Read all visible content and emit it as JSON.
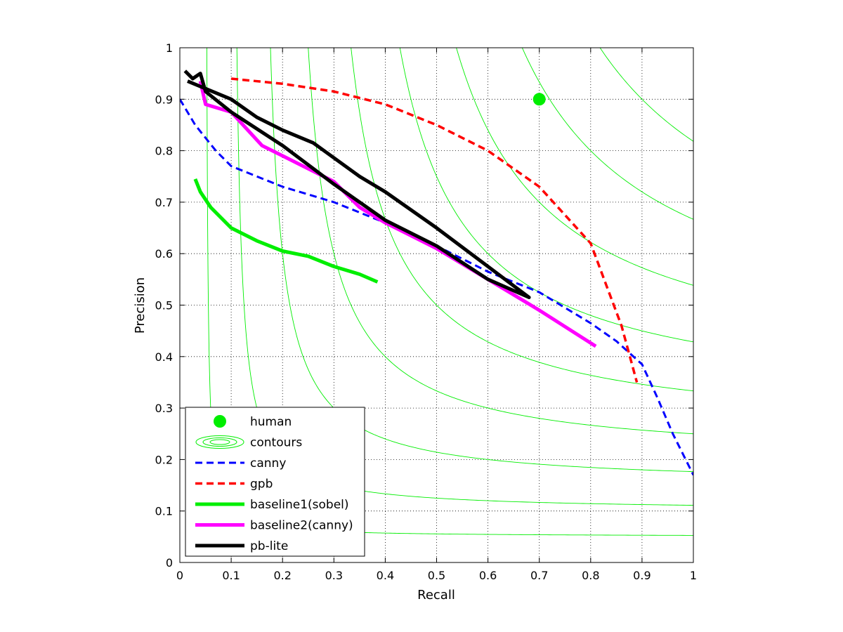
{
  "chart_data": {
    "type": "line",
    "title": "",
    "xlabel": "Recall",
    "ylabel": "Precision",
    "xlim": [
      0,
      1
    ],
    "ylim": [
      0,
      1
    ],
    "xticks": [
      0,
      0.1,
      0.2,
      0.3,
      0.4,
      0.5,
      0.6,
      0.7,
      0.8,
      0.9,
      1
    ],
    "yticks": [
      0,
      0.1,
      0.2,
      0.3,
      0.4,
      0.5,
      0.6,
      0.7,
      0.8,
      0.9,
      1
    ],
    "xtick_labels": [
      "0",
      "0.1",
      "0.2",
      "0.3",
      "0.4",
      "0.5",
      "0.6",
      "0.7",
      "0.8",
      "0.9",
      "1"
    ],
    "ytick_labels": [
      "0",
      "0.1",
      "0.2",
      "0.3",
      "0.4",
      "0.5",
      "0.6",
      "0.7",
      "0.8",
      "0.9",
      "1"
    ],
    "grid": true,
    "legend_position": "bottom-left",
    "contour_f_values": [
      0.1,
      0.2,
      0.3,
      0.4,
      0.5,
      0.6,
      0.7,
      0.8,
      0.9
    ],
    "series": [
      {
        "name": "human",
        "kind": "point",
        "color": "#00ee00",
        "points": [
          [
            0.7,
            0.9
          ]
        ]
      },
      {
        "name": "contours",
        "kind": "contours",
        "color": "#00ee00"
      },
      {
        "name": "canny",
        "kind": "line",
        "color": "#0000ff",
        "dash": "dashed",
        "points": [
          [
            0.0,
            0.9
          ],
          [
            0.03,
            0.85
          ],
          [
            0.07,
            0.8
          ],
          [
            0.1,
            0.77
          ],
          [
            0.2,
            0.73
          ],
          [
            0.3,
            0.7
          ],
          [
            0.4,
            0.66
          ],
          [
            0.5,
            0.615
          ],
          [
            0.6,
            0.565
          ],
          [
            0.7,
            0.525
          ],
          [
            0.8,
            0.465
          ],
          [
            0.85,
            0.43
          ],
          [
            0.9,
            0.385
          ],
          [
            0.93,
            0.32
          ],
          [
            0.96,
            0.25
          ],
          [
            1.0,
            0.17
          ]
        ]
      },
      {
        "name": "gpb",
        "kind": "line",
        "color": "#ff0000",
        "dash": "dashed",
        "points": [
          [
            0.1,
            0.94
          ],
          [
            0.2,
            0.93
          ],
          [
            0.3,
            0.915
          ],
          [
            0.4,
            0.89
          ],
          [
            0.5,
            0.85
          ],
          [
            0.6,
            0.8
          ],
          [
            0.7,
            0.73
          ],
          [
            0.8,
            0.62
          ],
          [
            0.83,
            0.54
          ],
          [
            0.86,
            0.46
          ],
          [
            0.89,
            0.35
          ]
        ]
      },
      {
        "name": "baseline1(sobel)",
        "kind": "line",
        "color": "#00ee00",
        "dash": "solid",
        "points": [
          [
            0.03,
            0.745
          ],
          [
            0.04,
            0.72
          ],
          [
            0.06,
            0.69
          ],
          [
            0.1,
            0.65
          ],
          [
            0.15,
            0.625
          ],
          [
            0.2,
            0.605
          ],
          [
            0.25,
            0.595
          ],
          [
            0.3,
            0.575
          ],
          [
            0.35,
            0.56
          ],
          [
            0.385,
            0.545
          ]
        ]
      },
      {
        "name": "baseline2(canny)",
        "kind": "line",
        "color": "#ff00ff",
        "dash": "solid",
        "points": [
          [
            0.04,
            0.935
          ],
          [
            0.05,
            0.89
          ],
          [
            0.1,
            0.875
          ],
          [
            0.16,
            0.81
          ],
          [
            0.2,
            0.79
          ],
          [
            0.3,
            0.74
          ],
          [
            0.35,
            0.69
          ],
          [
            0.4,
            0.66
          ],
          [
            0.5,
            0.61
          ],
          [
            0.6,
            0.55
          ],
          [
            0.7,
            0.49
          ],
          [
            0.81,
            0.42
          ]
        ]
      },
      {
        "name": "pb-lite",
        "kind": "line",
        "color": "#000000",
        "dash": "solid",
        "points": [
          [
            0.015,
            0.935
          ],
          [
            0.1,
            0.9
          ],
          [
            0.15,
            0.865
          ],
          [
            0.2,
            0.84
          ],
          [
            0.26,
            0.815
          ],
          [
            0.35,
            0.75
          ],
          [
            0.4,
            0.72
          ],
          [
            0.5,
            0.65
          ],
          [
            0.6,
            0.575
          ],
          [
            0.68,
            0.515
          ],
          [
            0.6,
            0.55
          ],
          [
            0.5,
            0.615
          ],
          [
            0.4,
            0.665
          ],
          [
            0.3,
            0.735
          ],
          [
            0.2,
            0.81
          ],
          [
            0.1,
            0.875
          ],
          [
            0.05,
            0.915
          ],
          [
            0.04,
            0.95
          ],
          [
            0.025,
            0.94
          ],
          [
            0.01,
            0.955
          ]
        ]
      }
    ]
  }
}
